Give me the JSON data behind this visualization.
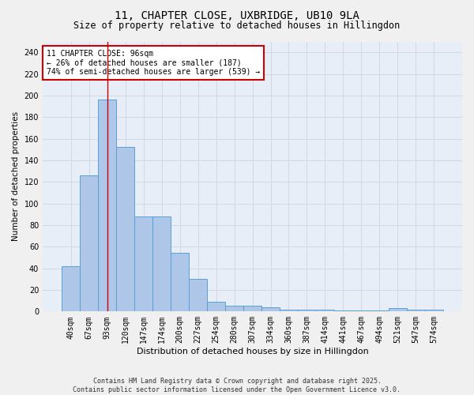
{
  "title1": "11, CHAPTER CLOSE, UXBRIDGE, UB10 9LA",
  "title2": "Size of property relative to detached houses in Hillingdon",
  "xlabel": "Distribution of detached houses by size in Hillingdon",
  "ylabel": "Number of detached properties",
  "bins": [
    "40sqm",
    "67sqm",
    "93sqm",
    "120sqm",
    "147sqm",
    "174sqm",
    "200sqm",
    "227sqm",
    "254sqm",
    "280sqm",
    "307sqm",
    "334sqm",
    "360sqm",
    "387sqm",
    "414sqm",
    "441sqm",
    "467sqm",
    "494sqm",
    "521sqm",
    "547sqm",
    "574sqm"
  ],
  "values": [
    42,
    126,
    196,
    152,
    88,
    88,
    54,
    30,
    9,
    5,
    5,
    4,
    2,
    2,
    2,
    1,
    1,
    1,
    3,
    2,
    2
  ],
  "bar_color": "#aec6e8",
  "bar_edge_color": "#5a9fd4",
  "vline_x_index": 2,
  "vline_color": "#cc0000",
  "annotation_text": "11 CHAPTER CLOSE: 96sqm\n← 26% of detached houses are smaller (187)\n74% of semi-detached houses are larger (539) →",
  "annotation_box_color": "#ffffff",
  "annotation_box_edge": "#cc0000",
  "grid_color": "#d0d8e8",
  "bg_color": "#e8eef8",
  "fig_bg_color": "#f0f0f0",
  "footer": "Contains HM Land Registry data © Crown copyright and database right 2025.\nContains public sector information licensed under the Open Government Licence v3.0.",
  "ylim": [
    0,
    250
  ],
  "yticks": [
    0,
    20,
    40,
    60,
    80,
    100,
    120,
    140,
    160,
    180,
    200,
    220,
    240
  ],
  "title1_fontsize": 10,
  "title2_fontsize": 8.5,
  "ylabel_fontsize": 7.5,
  "xlabel_fontsize": 8,
  "tick_fontsize": 7,
  "annot_fontsize": 7,
  "footer_fontsize": 6
}
